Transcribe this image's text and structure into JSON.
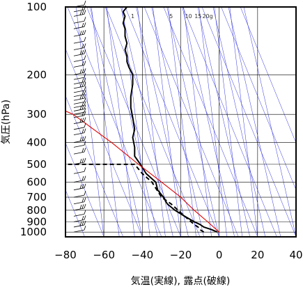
{
  "chart_data": {
    "type": "line",
    "title": "",
    "xlabel": "気温(実線), 露点(破線)",
    "ylabel": "気圧(hPa)",
    "xlim": [
      -80,
      40
    ],
    "ylim": [
      1050,
      100
    ],
    "y_scale": "log",
    "xticks": [
      "−80",
      "−60",
      "−40",
      "−20",
      "0",
      "20",
      "40"
    ],
    "xtick_values": [
      -80,
      -60,
      -40,
      -20,
      0,
      20,
      40
    ],
    "yticks": [
      "100",
      "200",
      "300",
      "400",
      "500",
      "600",
      "700",
      "800",
      "900",
      "1000"
    ],
    "ytick_values": [
      100,
      200,
      300,
      400,
      500,
      600,
      700,
      800,
      900,
      1000
    ],
    "mixing_ratio_labels": [
      "1",
      "5",
      "10",
      "15",
      "20g"
    ],
    "mixing_ratio_label_x": [
      -45,
      -25,
      -16,
      -11,
      -6
    ],
    "colors": {
      "temperature": "#000000",
      "dewpoint": "#000000",
      "red_curve": "#e00000",
      "background_lines": "#3333dd",
      "grid": "#000000"
    },
    "series": [
      {
        "style": "solid",
        "x": [
          -1,
          -4,
          -8,
          -10,
          -13,
          -18,
          -23,
          -27,
          -29,
          -32,
          -33,
          -38,
          -41,
          -44,
          -44,
          -45,
          -44,
          -45,
          -46,
          -46,
          -45,
          -45,
          -47,
          -48,
          -48,
          -49,
          -48,
          -49,
          -49,
          -50,
          -49,
          -50,
          -48
        ],
        "y": [
          1000,
          975,
          950,
          925,
          900,
          850,
          800,
          750,
          700,
          650,
          600,
          550,
          500,
          460,
          420,
          380,
          350,
          310,
          280,
          250,
          220,
          200,
          185,
          175,
          165,
          155,
          145,
          135,
          125,
          118,
          110,
          105,
          100
        ]
      },
      {
        "style": "dashed",
        "x": [
          -8,
          -10,
          -11,
          -13,
          -18,
          -25,
          -30,
          -35,
          -40,
          -44,
          -81
        ],
        "y": [
          1000,
          975,
          950,
          925,
          850,
          750,
          700,
          600,
          550,
          500,
          500
        ]
      },
      {
        "style": "solid",
        "x": [
          0,
          -6,
          -13,
          -20,
          -30,
          -42,
          -56,
          -76,
          -84
        ],
        "y": [
          1000,
          900,
          800,
          700,
          600,
          500,
          400,
          300,
          280
        ]
      }
    ],
    "wind_barbs_pressure": [
      100,
      105,
      110,
      118,
      125,
      135,
      145,
      155,
      165,
      175,
      185,
      200,
      210,
      220,
      230,
      240,
      250,
      260,
      270,
      280,
      290,
      300,
      310,
      330,
      350,
      370,
      400,
      420,
      450,
      500,
      550,
      600,
      650,
      700,
      750,
      800,
      850,
      900,
      950,
      1000
    ]
  }
}
